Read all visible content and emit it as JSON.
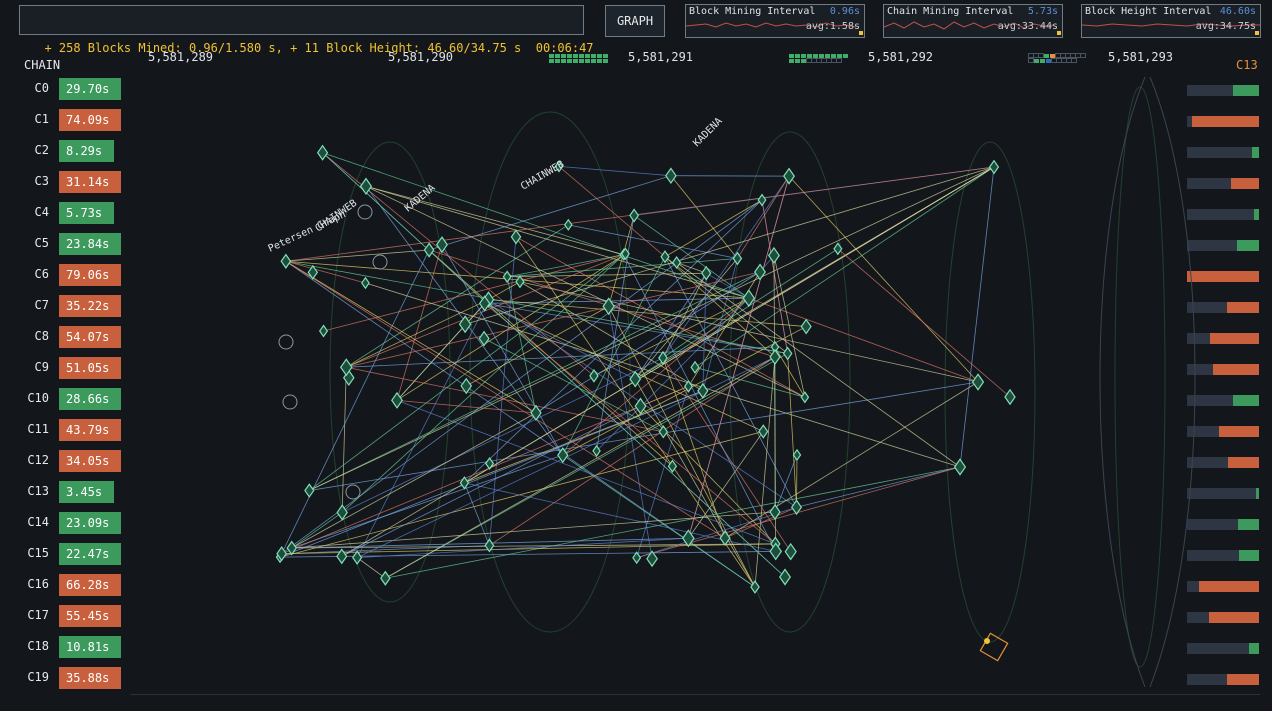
{
  "header": {
    "stats_text": "+ 258 Blocks Mined: 0.96/1.580 s, + 11 Block Height: 46.60/34.75 s  00:06:47",
    "graph_button": "GRAPH"
  },
  "sparklines": [
    {
      "label": "Block Mining Interval",
      "value": "0.96s",
      "avg": "avg:1.58s"
    },
    {
      "label": "Chain Mining Interval",
      "value": "5.73s",
      "avg": "avg:33.44s"
    },
    {
      "label": "Block Height Interval",
      "value": "46.60s",
      "avg": "avg:34.75s"
    }
  ],
  "block_heights": [
    "5,581,289",
    "5,581,290",
    "5,581,291",
    "5,581,292",
    "5,581,293"
  ],
  "chain_header": "CHAIN",
  "selected_chain": "C13",
  "chains": [
    {
      "id": "C0",
      "time": "29.70s",
      "status": "fast"
    },
    {
      "id": "C1",
      "time": "74.09s",
      "status": "slow"
    },
    {
      "id": "C2",
      "time": "8.29s",
      "status": "fast"
    },
    {
      "id": "C3",
      "time": "31.14s",
      "status": "slow"
    },
    {
      "id": "C4",
      "time": "5.73s",
      "status": "fast"
    },
    {
      "id": "C5",
      "time": "23.84s",
      "status": "fast"
    },
    {
      "id": "C6",
      "time": "79.06s",
      "status": "slow"
    },
    {
      "id": "C7",
      "time": "35.22s",
      "status": "slow"
    },
    {
      "id": "C8",
      "time": "54.07s",
      "status": "slow"
    },
    {
      "id": "C9",
      "time": "51.05s",
      "status": "slow"
    },
    {
      "id": "C10",
      "time": "28.66s",
      "status": "fast"
    },
    {
      "id": "C11",
      "time": "43.79s",
      "status": "slow"
    },
    {
      "id": "C12",
      "time": "34.05s",
      "status": "slow"
    },
    {
      "id": "C13",
      "time": "3.45s",
      "status": "fast"
    },
    {
      "id": "C14",
      "time": "23.09s",
      "status": "fast"
    },
    {
      "id": "C15",
      "time": "22.47s",
      "status": "fast"
    },
    {
      "id": "C16",
      "time": "66.28s",
      "status": "slow"
    },
    {
      "id": "C17",
      "time": "55.45s",
      "status": "slow"
    },
    {
      "id": "C18",
      "time": "10.81s",
      "status": "fast"
    },
    {
      "id": "C19",
      "time": "35.88s",
      "status": "slow"
    }
  ],
  "graph_labels": [
    "Petersen Graph",
    "CHAINWEB",
    "KADENA",
    "CHAINWEB",
    "KADENA"
  ],
  "colors": {
    "fast": "#3b9a5c",
    "slow": "#c9603d",
    "accent": "#f1c232",
    "node": "#7fe0b8"
  }
}
